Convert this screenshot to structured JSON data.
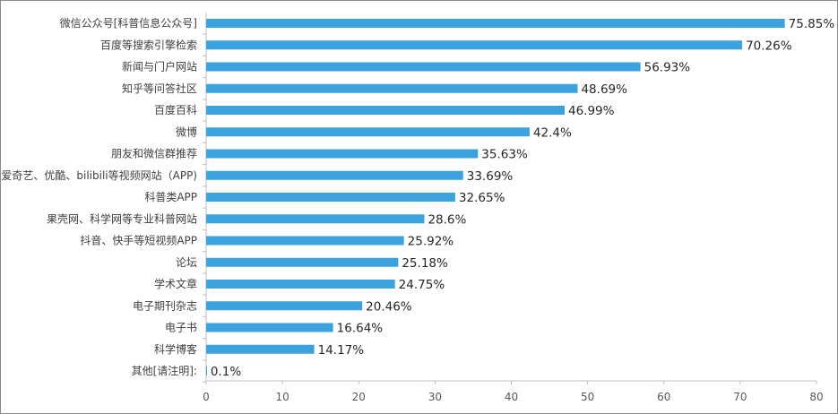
{
  "chart_data": {
    "type": "bar",
    "orientation": "horizontal",
    "categories": [
      "微信公众号[科普信息公众号]",
      "百度等搜索引擎检索",
      "新闻与门户网站",
      "知乎等问答社区",
      "百度百科",
      "微博",
      "朋友和微信群推荐",
      "爱奇艺、优酷、bilibili等视频网站（APP)",
      "科普类APP",
      "果壳网、科学网等专业科普网站",
      "抖音、快手等短视频APP",
      "论坛",
      "学术文章",
      "电子期刊杂志",
      "电子书",
      "科学博客",
      "其他[请注明]:"
    ],
    "values": [
      75.85,
      70.26,
      56.93,
      48.69,
      46.99,
      42.4,
      35.63,
      33.69,
      32.65,
      28.6,
      25.92,
      25.18,
      24.75,
      20.46,
      16.64,
      14.17,
      0.1
    ],
    "value_labels": [
      "75.85%",
      "70.26%",
      "56.93%",
      "48.69%",
      "46.99%",
      "42.4%",
      "35.63%",
      "33.69%",
      "32.65%",
      "28.6%",
      "25.92%",
      "25.18%",
      "24.75%",
      "20.46%",
      "16.64%",
      "14.17%",
      "0.1%"
    ],
    "xlim": [
      0,
      80
    ],
    "x_ticks": [
      "0",
      "10",
      "20",
      "30",
      "40",
      "50",
      "60",
      "70",
      "80"
    ],
    "title": "",
    "xlabel": "",
    "ylabel": "",
    "grid": false,
    "legend": "none",
    "colors": {
      "bar": "#3ba2dd",
      "axis": "#bfbfbf"
    }
  }
}
